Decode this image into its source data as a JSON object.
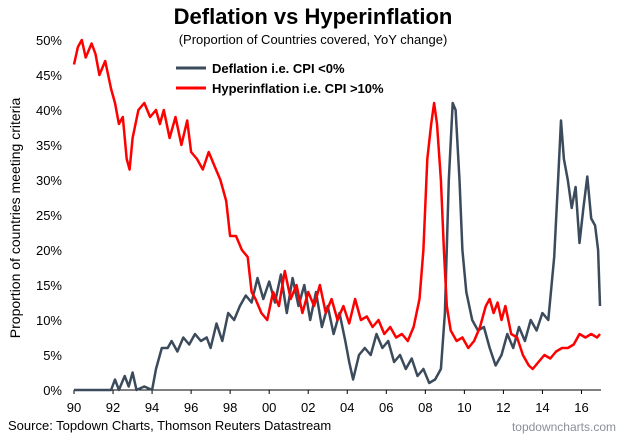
{
  "chart_data": {
    "type": "line",
    "title": "Deflation vs Hyperinflation",
    "subtitle": "(Proportion of Countries covered, YoY change)",
    "xlabel": "",
    "ylabel": "Proportion of countries meeting criteria",
    "x_range": [
      1990,
      2017
    ],
    "x_ticks": [
      "90",
      "92",
      "94",
      "96",
      "98",
      "00",
      "02",
      "04",
      "06",
      "08",
      "10",
      "12",
      "14",
      "16"
    ],
    "ylim": [
      0,
      0.5
    ],
    "y_ticks": [
      "0%",
      "5%",
      "10%",
      "15%",
      "20%",
      "25%",
      "30%",
      "35%",
      "40%",
      "45%",
      "50%"
    ],
    "grid": false,
    "legend_position": "top-center",
    "series": [
      {
        "name": "Deflation i.e. CPI <0%",
        "color": "#3b4b5c",
        "points": [
          [
            1990.0,
            0.0
          ],
          [
            1991.0,
            0.0
          ],
          [
            1991.9,
            0.0
          ],
          [
            1992.1,
            0.015
          ],
          [
            1992.3,
            0.0
          ],
          [
            1992.6,
            0.02
          ],
          [
            1992.8,
            0.005
          ],
          [
            1993.0,
            0.025
          ],
          [
            1993.2,
            0.0
          ],
          [
            1993.6,
            0.005
          ],
          [
            1994.0,
            0.0
          ],
          [
            1994.2,
            0.03
          ],
          [
            1994.5,
            0.06
          ],
          [
            1994.8,
            0.06
          ],
          [
            1995.0,
            0.07
          ],
          [
            1995.3,
            0.055
          ],
          [
            1995.6,
            0.075
          ],
          [
            1995.9,
            0.065
          ],
          [
            1996.2,
            0.08
          ],
          [
            1996.5,
            0.07
          ],
          [
            1996.8,
            0.075
          ],
          [
            1997.0,
            0.06
          ],
          [
            1997.3,
            0.095
          ],
          [
            1997.6,
            0.07
          ],
          [
            1997.9,
            0.11
          ],
          [
            1998.2,
            0.1
          ],
          [
            1998.5,
            0.12
          ],
          [
            1998.8,
            0.135
          ],
          [
            1999.1,
            0.125
          ],
          [
            1999.4,
            0.16
          ],
          [
            1999.7,
            0.13
          ],
          [
            2000.0,
            0.155
          ],
          [
            2000.3,
            0.125
          ],
          [
            2000.6,
            0.165
          ],
          [
            2000.9,
            0.11
          ],
          [
            2001.2,
            0.16
          ],
          [
            2001.5,
            0.12
          ],
          [
            2001.8,
            0.15
          ],
          [
            2002.1,
            0.1
          ],
          [
            2002.4,
            0.14
          ],
          [
            2002.7,
            0.09
          ],
          [
            2003.0,
            0.12
          ],
          [
            2003.3,
            0.08
          ],
          [
            2003.6,
            0.11
          ],
          [
            2003.9,
            0.07
          ],
          [
            2004.1,
            0.04
          ],
          [
            2004.3,
            0.015
          ],
          [
            2004.6,
            0.05
          ],
          [
            2004.9,
            0.06
          ],
          [
            2005.2,
            0.05
          ],
          [
            2005.5,
            0.08
          ],
          [
            2005.8,
            0.06
          ],
          [
            2006.1,
            0.07
          ],
          [
            2006.4,
            0.04
          ],
          [
            2006.7,
            0.05
          ],
          [
            2007.0,
            0.03
          ],
          [
            2007.3,
            0.045
          ],
          [
            2007.6,
            0.02
          ],
          [
            2007.9,
            0.03
          ],
          [
            2008.2,
            0.01
          ],
          [
            2008.5,
            0.015
          ],
          [
            2008.8,
            0.03
          ],
          [
            2009.0,
            0.11
          ],
          [
            2009.2,
            0.3
          ],
          [
            2009.4,
            0.41
          ],
          [
            2009.55,
            0.4
          ],
          [
            2009.75,
            0.3
          ],
          [
            2009.9,
            0.2
          ],
          [
            2010.1,
            0.14
          ],
          [
            2010.4,
            0.1
          ],
          [
            2010.7,
            0.085
          ],
          [
            2011.0,
            0.09
          ],
          [
            2011.3,
            0.06
          ],
          [
            2011.6,
            0.035
          ],
          [
            2011.9,
            0.05
          ],
          [
            2012.2,
            0.08
          ],
          [
            2012.5,
            0.06
          ],
          [
            2012.8,
            0.09
          ],
          [
            2013.1,
            0.07
          ],
          [
            2013.4,
            0.1
          ],
          [
            2013.7,
            0.085
          ],
          [
            2014.0,
            0.11
          ],
          [
            2014.3,
            0.1
          ],
          [
            2014.6,
            0.19
          ],
          [
            2014.8,
            0.3
          ],
          [
            2014.95,
            0.385
          ],
          [
            2015.1,
            0.33
          ],
          [
            2015.3,
            0.3
          ],
          [
            2015.5,
            0.26
          ],
          [
            2015.7,
            0.29
          ],
          [
            2015.9,
            0.21
          ],
          [
            2016.1,
            0.26
          ],
          [
            2016.3,
            0.305
          ],
          [
            2016.5,
            0.245
          ],
          [
            2016.7,
            0.235
          ],
          [
            2016.85,
            0.2
          ],
          [
            2016.95,
            0.12
          ]
        ]
      },
      {
        "name": "Hyperinflation i.e. CPI >10%",
        "color": "#ff0000",
        "points": [
          [
            1990.0,
            0.465
          ],
          [
            1990.2,
            0.49
          ],
          [
            1990.4,
            0.5
          ],
          [
            1990.6,
            0.475
          ],
          [
            1990.9,
            0.495
          ],
          [
            1991.1,
            0.48
          ],
          [
            1991.3,
            0.45
          ],
          [
            1991.6,
            0.47
          ],
          [
            1991.9,
            0.43
          ],
          [
            1992.1,
            0.41
          ],
          [
            1992.3,
            0.38
          ],
          [
            1992.5,
            0.39
          ],
          [
            1992.7,
            0.33
          ],
          [
            1992.85,
            0.315
          ],
          [
            1993.0,
            0.36
          ],
          [
            1993.3,
            0.4
          ],
          [
            1993.6,
            0.41
          ],
          [
            1993.9,
            0.39
          ],
          [
            1994.2,
            0.4
          ],
          [
            1994.4,
            0.38
          ],
          [
            1994.6,
            0.4
          ],
          [
            1994.9,
            0.36
          ],
          [
            1995.2,
            0.39
          ],
          [
            1995.5,
            0.35
          ],
          [
            1995.8,
            0.385
          ],
          [
            1996.0,
            0.34
          ],
          [
            1996.3,
            0.33
          ],
          [
            1996.6,
            0.315
          ],
          [
            1996.9,
            0.34
          ],
          [
            1997.2,
            0.32
          ],
          [
            1997.5,
            0.3
          ],
          [
            1997.8,
            0.27
          ],
          [
            1998.0,
            0.22
          ],
          [
            1998.3,
            0.22
          ],
          [
            1998.6,
            0.2
          ],
          [
            1998.9,
            0.19
          ],
          [
            1999.1,
            0.14
          ],
          [
            1999.3,
            0.13
          ],
          [
            1999.6,
            0.11
          ],
          [
            1999.9,
            0.1
          ],
          [
            2000.2,
            0.14
          ],
          [
            2000.5,
            0.12
          ],
          [
            2000.8,
            0.17
          ],
          [
            2001.1,
            0.13
          ],
          [
            2001.4,
            0.15
          ],
          [
            2001.7,
            0.11
          ],
          [
            2002.0,
            0.14
          ],
          [
            2002.3,
            0.12
          ],
          [
            2002.6,
            0.15
          ],
          [
            2002.9,
            0.11
          ],
          [
            2003.2,
            0.13
          ],
          [
            2003.5,
            0.1
          ],
          [
            2003.8,
            0.12
          ],
          [
            2004.1,
            0.095
          ],
          [
            2004.4,
            0.13
          ],
          [
            2004.7,
            0.1
          ],
          [
            2005.0,
            0.105
          ],
          [
            2005.3,
            0.09
          ],
          [
            2005.6,
            0.1
          ],
          [
            2005.9,
            0.08
          ],
          [
            2006.2,
            0.09
          ],
          [
            2006.5,
            0.075
          ],
          [
            2006.8,
            0.08
          ],
          [
            2007.1,
            0.07
          ],
          [
            2007.4,
            0.09
          ],
          [
            2007.7,
            0.13
          ],
          [
            2007.9,
            0.2
          ],
          [
            2008.1,
            0.33
          ],
          [
            2008.3,
            0.38
          ],
          [
            2008.45,
            0.41
          ],
          [
            2008.6,
            0.38
          ],
          [
            2008.8,
            0.3
          ],
          [
            2008.95,
            0.2
          ],
          [
            2009.1,
            0.12
          ],
          [
            2009.3,
            0.085
          ],
          [
            2009.6,
            0.07
          ],
          [
            2009.9,
            0.075
          ],
          [
            2010.2,
            0.06
          ],
          [
            2010.5,
            0.07
          ],
          [
            2010.8,
            0.09
          ],
          [
            2011.1,
            0.12
          ],
          [
            2011.3,
            0.13
          ],
          [
            2011.5,
            0.11
          ],
          [
            2011.7,
            0.125
          ],
          [
            2011.9,
            0.1
          ],
          [
            2012.1,
            0.12
          ],
          [
            2012.4,
            0.08
          ],
          [
            2012.7,
            0.075
          ],
          [
            2013.0,
            0.05
          ],
          [
            2013.3,
            0.035
          ],
          [
            2013.5,
            0.03
          ],
          [
            2013.8,
            0.04
          ],
          [
            2014.1,
            0.05
          ],
          [
            2014.4,
            0.045
          ],
          [
            2014.7,
            0.055
          ],
          [
            2015.0,
            0.06
          ],
          [
            2015.3,
            0.06
          ],
          [
            2015.6,
            0.065
          ],
          [
            2015.9,
            0.08
          ],
          [
            2016.2,
            0.075
          ],
          [
            2016.5,
            0.08
          ],
          [
            2016.8,
            0.075
          ],
          [
            2016.95,
            0.08
          ]
        ]
      }
    ]
  },
  "source": "Source: Topdown Charts, Thomson Reuters Datastream",
  "brand": "topdowncharts.com"
}
